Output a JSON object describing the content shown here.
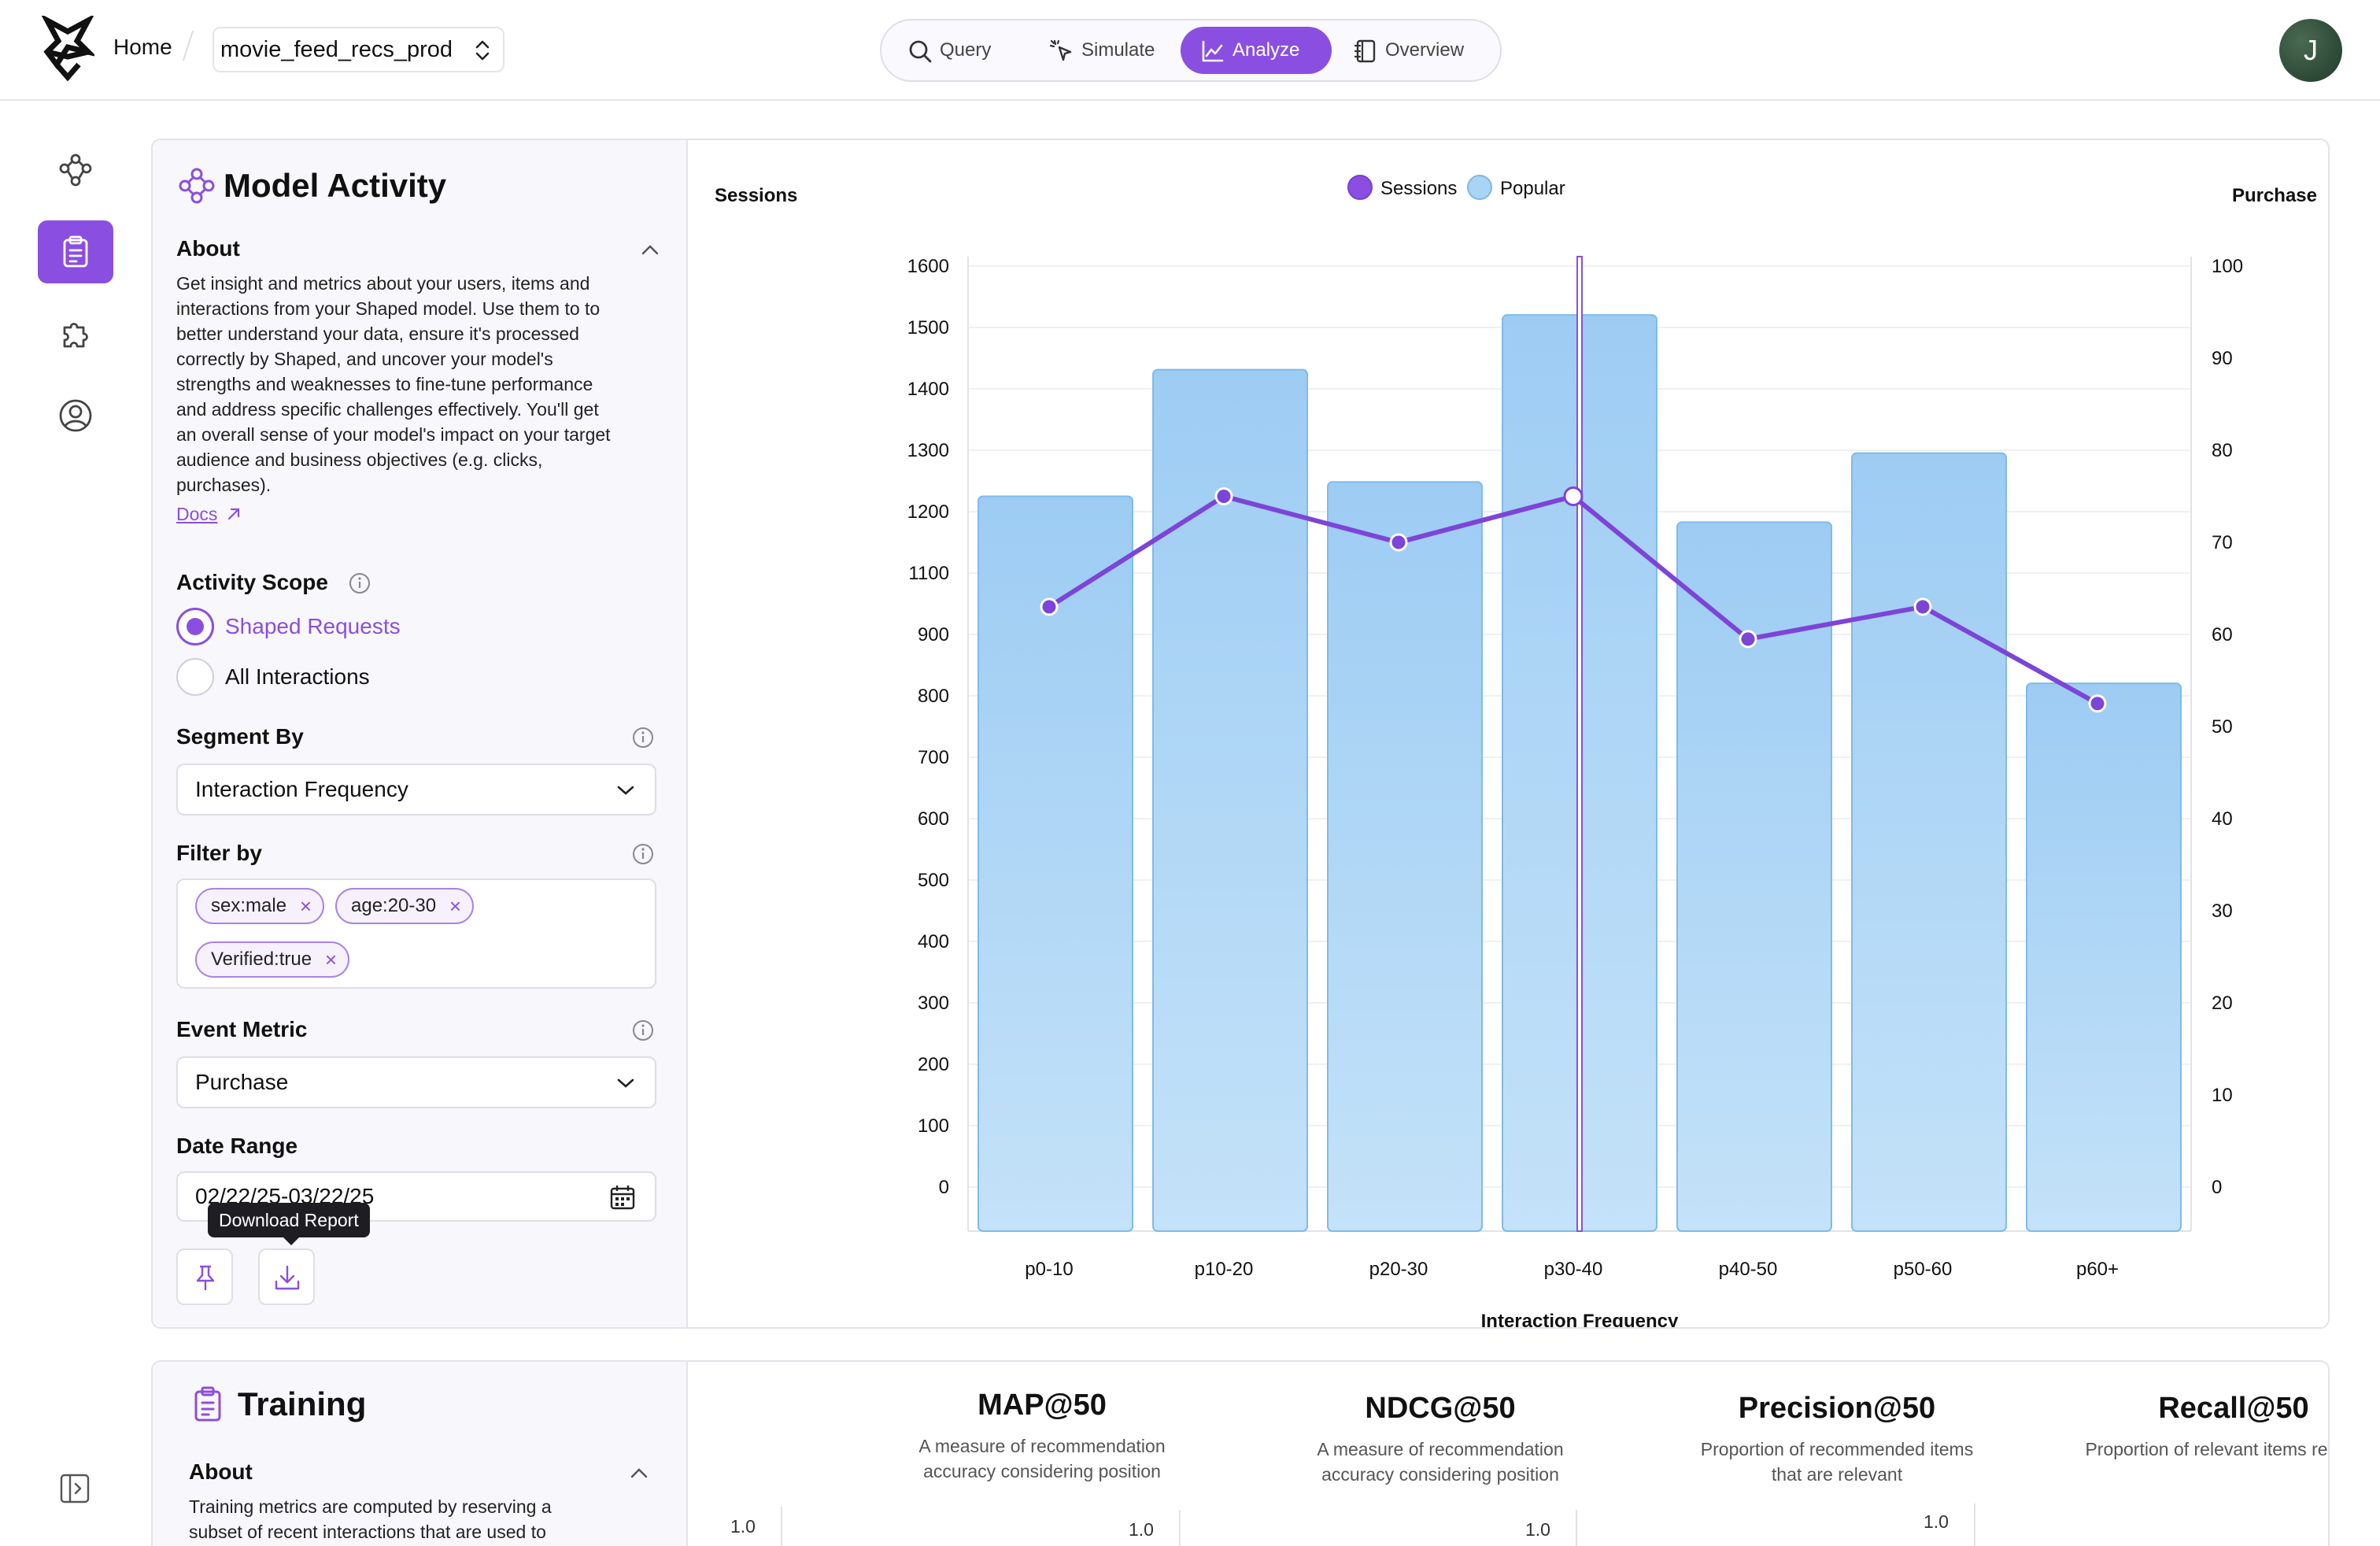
{
  "topbar": {
    "home_label": "Home",
    "project_name": "movie_feed_recs_prod",
    "tabs": [
      {
        "label": "Query",
        "icon": "search-icon"
      },
      {
        "label": "Simulate",
        "icon": "cursor-click-icon"
      },
      {
        "label": "Analyze",
        "icon": "chart-line-icon",
        "active": true
      },
      {
        "label": "Overview",
        "icon": "notebook-icon"
      }
    ],
    "avatar_initial": "J"
  },
  "rail": {
    "items": [
      "graph-nodes-icon",
      "clipboard-icon",
      "puzzle-icon",
      "user-circle-icon"
    ],
    "active_index": 1
  },
  "activity": {
    "title": "Model Activity",
    "about_title": "About",
    "about_lines": [
      "Get insight and metrics about your users, items and",
      "interactions from your Shaped model. Use them to to",
      "better understand your data, ensure it's processed",
      "correctly by Shaped, and uncover your model's",
      "strengths and weaknesses to fine-tune performance",
      "and address specific challenges effectively. You'll get",
      "an overall sense of your model's impact on your target",
      "audience and business objectives (e.g. clicks,",
      "purchases)."
    ],
    "docs_label": "Docs",
    "scope_title": "Activity Scope",
    "scope_options": [
      "Shaped Requests",
      "All Interactions"
    ],
    "scope_selected": 0,
    "segment_title": "Segment By",
    "segment_value": "Interaction Frequency",
    "filter_title": "Filter by",
    "filters": [
      "sex:male",
      "age:20-30",
      "Verified:true"
    ],
    "metric_title": "Event Metric",
    "metric_value": "Purchase",
    "date_title": "Date Range",
    "date_value": "02/22/25-03/22/25",
    "download_tooltip": "Download Report"
  },
  "chart_data": {
    "type": "bar",
    "categories": [
      "p0-10",
      "p10-20",
      "p20-30",
      "p30-40",
      "p40-50",
      "p50-60",
      "p60+"
    ],
    "series": [
      {
        "name": "Popular",
        "type": "bar",
        "axis": "left",
        "values": [
          1200,
          1420,
          1225,
          1515,
          1155,
          1275,
          875
        ],
        "color": "#a9d4f5"
      },
      {
        "name": "Sessions",
        "type": "line",
        "axis": "right",
        "values": [
          63,
          75,
          70,
          75,
          59.5,
          63,
          52.5
        ],
        "color": "#8a4fe0"
      }
    ],
    "left_label": "Sessions",
    "right_label": "Purchase",
    "xlabel": "Interaction Frequency",
    "left_ticks": [
      1600,
      1500,
      1400,
      1300,
      1200,
      1100,
      900,
      800,
      700,
      600,
      500,
      400,
      300,
      200,
      100,
      0
    ],
    "right_ticks": [
      100,
      90,
      80,
      70,
      60,
      50,
      40,
      30,
      20,
      10,
      0
    ],
    "legend_position": "top-center",
    "legend": [
      {
        "name": "Sessions",
        "color": "#8a4fe0"
      },
      {
        "name": "Popular",
        "color": "#a9d4f5"
      }
    ],
    "highlight_category": "p30-40",
    "grid": true
  },
  "training": {
    "title": "Training",
    "about_title": "About",
    "about_lines": [
      "Training metrics are computed by reserving a",
      "subset of recent interactions that are used to"
    ],
    "metrics": [
      {
        "name": "MAP@50",
        "desc": [
          "A measure of recommendation",
          "accuracy considering position"
        ],
        "axis_top": "1.0"
      },
      {
        "name": "NDCG@50",
        "desc": [
          "A measure of recommendation",
          "accuracy considering position"
        ],
        "axis_top": "1.0"
      },
      {
        "name": "Precision@50",
        "desc": [
          "Proportion of recommended items",
          "that are relevant"
        ],
        "axis_top": "1.0"
      },
      {
        "name": "Recall@50",
        "desc": [
          "Proportion of relevant items retrieved"
        ],
        "axis_top": "1.0"
      }
    ]
  }
}
